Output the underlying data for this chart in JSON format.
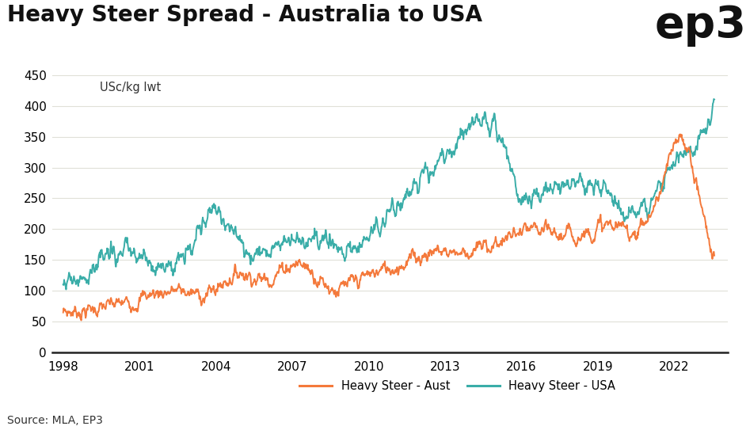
{
  "title": "Heavy Steer Spread - Australia to USA",
  "ylabel": "USc/kg lwt",
  "source": "Source: MLA, EP3",
  "legend_aust": "Heavy Steer - Aust",
  "legend_usa": "Heavy Steer - USA",
  "color_aust": "#F4793B",
  "color_usa": "#3AADA8",
  "background_color": "#FFFFFF",
  "ylim": [
    0,
    460
  ],
  "yticks": [
    0,
    50,
    100,
    150,
    200,
    250,
    300,
    350,
    400,
    450
  ],
  "title_fontsize": 20,
  "ep3_fontsize": 40,
  "grid_color": "#E0E0D8",
  "line_width": 1.4,
  "aust_anchors_t": [
    0.0,
    0.04,
    0.1,
    0.18,
    0.22,
    0.28,
    0.3,
    0.36,
    0.42,
    0.46,
    0.52,
    0.57,
    0.63,
    0.68,
    0.72,
    0.76,
    0.8,
    0.84,
    0.88,
    0.92,
    0.95,
    0.975,
    1.0
  ],
  "aust_anchors_v": [
    65,
    70,
    82,
    100,
    95,
    130,
    120,
    145,
    103,
    120,
    145,
    165,
    165,
    185,
    195,
    190,
    195,
    205,
    200,
    270,
    345,
    265,
    155
  ],
  "usa_anchors_t": [
    0.0,
    0.04,
    0.08,
    0.14,
    0.2,
    0.24,
    0.26,
    0.32,
    0.38,
    0.46,
    0.53,
    0.6,
    0.66,
    0.7,
    0.74,
    0.78,
    0.82,
    0.86,
    0.9,
    0.95,
    0.975,
    1.0
  ],
  "usa_anchors_v": [
    110,
    135,
    158,
    148,
    175,
    235,
    195,
    175,
    185,
    180,
    265,
    330,
    370,
    260,
    260,
    270,
    265,
    230,
    235,
    320,
    340,
    410
  ]
}
